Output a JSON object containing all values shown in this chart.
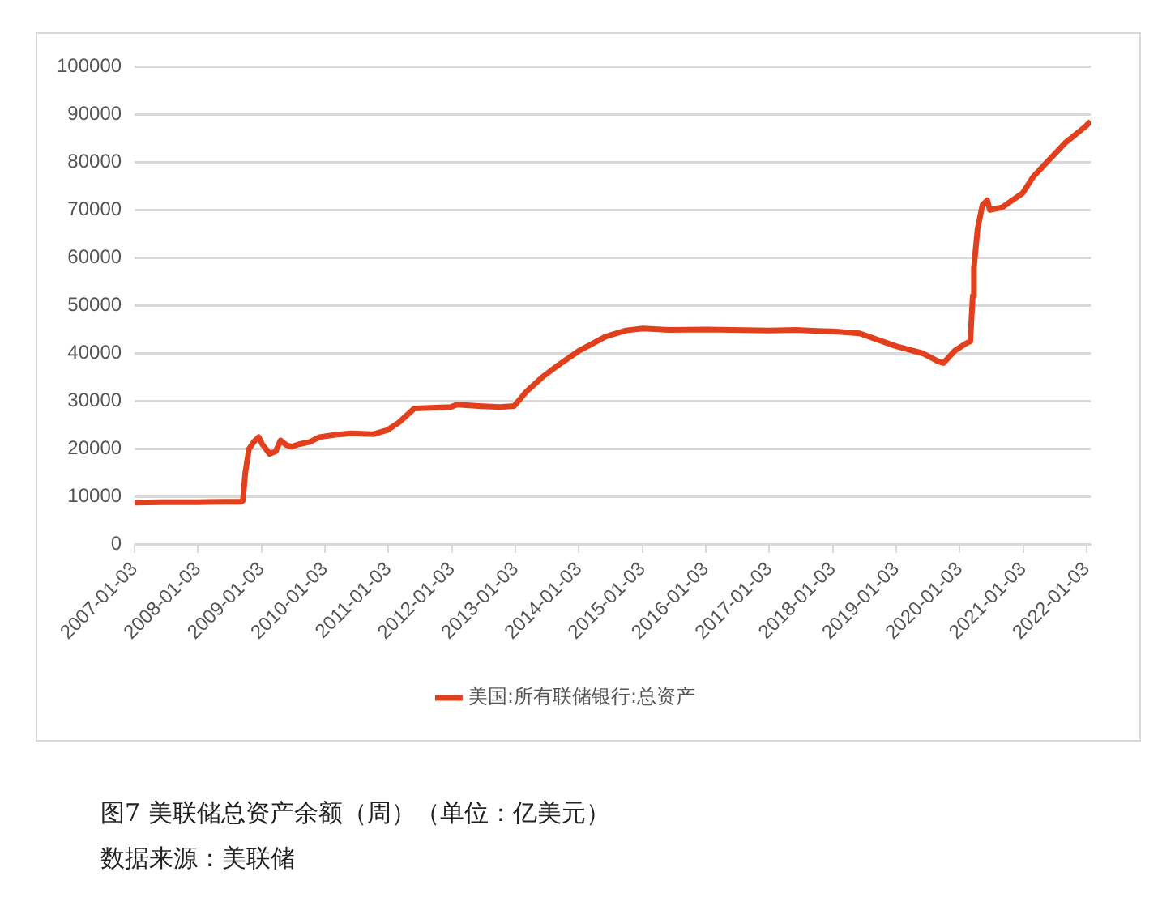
{
  "chart_data": {
    "type": "line",
    "x": [
      "2007-01-03",
      "2007-06-06",
      "2008-01-02",
      "2008-06-04",
      "2008-09-03",
      "2008-09-17",
      "2008-10-01",
      "2008-10-22",
      "2008-11-19",
      "2008-12-17",
      "2009-01-07",
      "2009-02-18",
      "2009-03-25",
      "2009-04-22",
      "2009-05-27",
      "2009-06-24",
      "2009-08-05",
      "2009-10-07",
      "2009-12-02",
      "2010-03-03",
      "2010-06-02",
      "2010-10-06",
      "2010-12-29",
      "2011-03-02",
      "2011-06-01",
      "2011-12-28",
      "2012-02-01",
      "2012-06-06",
      "2012-10-03",
      "2012-12-26",
      "2013-03-06",
      "2013-06-05",
      "2013-09-04",
      "2014-01-01",
      "2014-06-04",
      "2014-10-01",
      "2015-01-07",
      "2015-06-03",
      "2016-01-06",
      "2016-06-01",
      "2017-01-04",
      "2017-06-07",
      "2017-10-04",
      "2018-01-03",
      "2018-06-06",
      "2019-01-02",
      "2019-06-05",
      "2019-09-04",
      "2019-10-02",
      "2019-12-04",
      "2020-02-05",
      "2020-03-04",
      "2020-03-18",
      "2020-03-25",
      "2020-04-15",
      "2020-05-13",
      "2020-06-10",
      "2020-06-24",
      "2020-09-02",
      "2020-12-30",
      "2021-03-03",
      "2021-06-02",
      "2021-09-01",
      "2021-12-29",
      "2022-01-26"
    ],
    "series": [
      {
        "name": "美国:所有联储银行:总资产",
        "color": "#e2401c",
        "values": [
          8800,
          8900,
          8900,
          9000,
          9000,
          9200,
          15000,
          20000,
          21500,
          22500,
          21000,
          19000,
          19500,
          21800,
          20800,
          20500,
          21000,
          21500,
          22500,
          23000,
          23300,
          23100,
          24000,
          25500,
          28500,
          28800,
          29300,
          29000,
          28800,
          29000,
          32000,
          35000,
          37500,
          40500,
          43500,
          44800,
          45200,
          44900,
          45000,
          44900,
          44800,
          44900,
          44700,
          44600,
          44200,
          41500,
          40000,
          38300,
          38000,
          40500,
          42000,
          42500,
          52000,
          58000,
          66000,
          71000,
          72000,
          70000,
          70500,
          73500,
          77000,
          80500,
          84000,
          87500,
          88500
        ]
      }
    ],
    "xlim": [
      "2007-01-03",
      "2022-01-26"
    ],
    "xticks": [
      "2007-01-03",
      "2008-01-03",
      "2009-01-03",
      "2010-01-03",
      "2011-01-03",
      "2012-01-03",
      "2013-01-03",
      "2014-01-03",
      "2015-01-03",
      "2016-01-03",
      "2017-01-03",
      "2018-01-03",
      "2019-01-03",
      "2020-01-03",
      "2021-01-03",
      "2022-01-03"
    ],
    "ylim": [
      0,
      100000
    ],
    "yticks": [
      0,
      10000,
      20000,
      30000,
      40000,
      50000,
      60000,
      70000,
      80000,
      90000,
      100000
    ],
    "grid": "y",
    "legend": "bottom",
    "marker": "none",
    "line_style": "solid",
    "annotations": [
      "图7 美联储总资产余额（周）（单位：亿美元）",
      "数据来源：美联储"
    ]
  }
}
